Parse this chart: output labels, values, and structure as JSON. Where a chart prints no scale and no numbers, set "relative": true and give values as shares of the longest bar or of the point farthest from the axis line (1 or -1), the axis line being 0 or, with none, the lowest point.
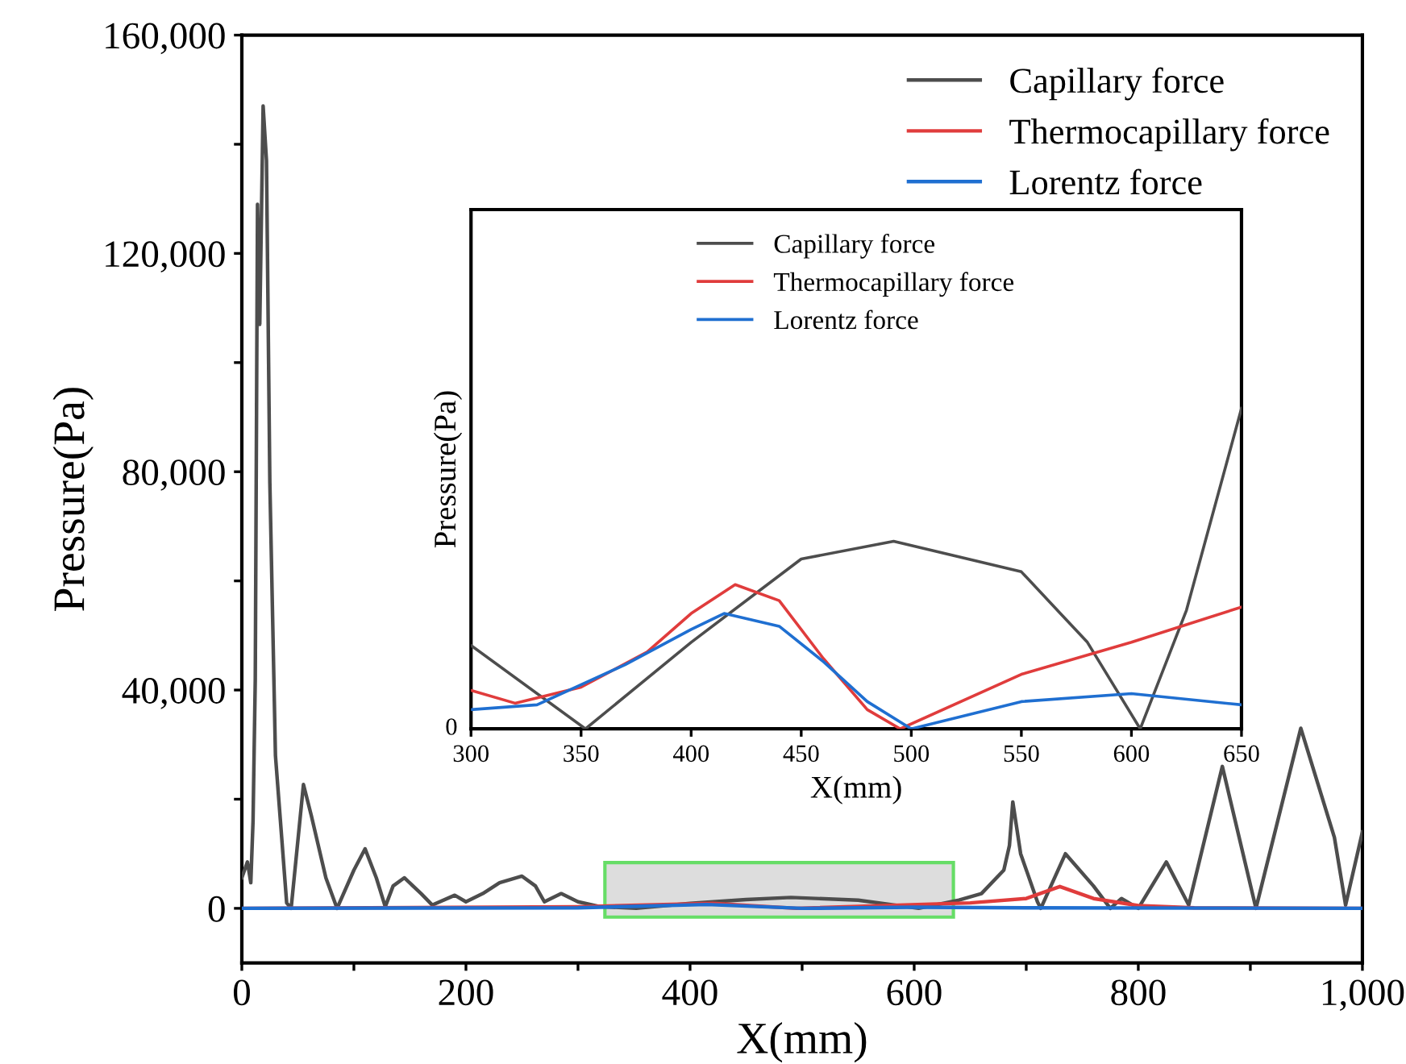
{
  "chart_data": [
    {
      "type": "line",
      "xlabel": "X(mm)",
      "ylabel": "Pressure(Pa)",
      "xlim": [
        0,
        1000
      ],
      "ylim": [
        -10000,
        160000
      ],
      "xticks": [
        0,
        {
          "value": 100,
          "label": null
        },
        200,
        {
          "value": 300,
          "label": null
        },
        400,
        {
          "value": 500,
          "label": null
        },
        600,
        {
          "value": 700,
          "label": null
        },
        800,
        {
          "value": 900,
          "label": null
        },
        {
          "value": 1000,
          "label": "1,000"
        }
      ],
      "yticks": [
        {
          "value": 0,
          "label": "0"
        },
        {
          "value": 20000,
          "label": null
        },
        {
          "value": 40000,
          "label": "40,000"
        },
        {
          "value": 60000,
          "label": null
        },
        {
          "value": 80000,
          "label": "80,000"
        },
        {
          "value": 100000,
          "label": null
        },
        {
          "value": 120000,
          "label": "120,000"
        },
        {
          "value": 140000,
          "label": null
        },
        {
          "value": 160000,
          "label": "160,000"
        }
      ],
      "grid": false,
      "legend": "top right",
      "bands": [
        {
          "axis": "x",
          "from": 324,
          "to": 635,
          "color": "#dddddd"
        }
      ],
      "series": [
        {
          "name": "Capillary force",
          "color": "#4d4d4d",
          "x": [
            0,
            5,
            8,
            10,
            12,
            14,
            16,
            19,
            22,
            25,
            30,
            40,
            44,
            55,
            62,
            75,
            85,
            100,
            110,
            120,
            128,
            135,
            145,
            160,
            170,
            190,
            200,
            215,
            230,
            250,
            262,
            270,
            285,
            300,
            320,
            352,
            400,
            450,
            490,
            550,
            604,
            640,
            660,
            680,
            685,
            688,
            695,
            710,
            713,
            735,
            760,
            775,
            785,
            800,
            825,
            845,
            875,
            905,
            945,
            975,
            985,
            1000
          ],
          "values": [
            5600,
            8500,
            4700,
            16000,
            42000,
            129000,
            107000,
            147000,
            137000,
            78000,
            28000,
            1000,
            0,
            22700,
            17000,
            5600,
            0,
            7000,
            10900,
            5600,
            300,
            4100,
            5600,
            2700,
            600,
            2400,
            1200,
            2700,
            4700,
            5900,
            4100,
            1200,
            2700,
            1200,
            300,
            0,
            900,
            1600,
            2000,
            1500,
            0,
            1500,
            2700,
            7000,
            11500,
            19500,
            10000,
            1200,
            0,
            10000,
            4100,
            0,
            1800,
            0,
            8500,
            600,
            26000,
            0,
            33000,
            13000,
            600,
            14000
          ]
        },
        {
          "name": "Thermocapillary force",
          "color": "#e03c3c",
          "x": [
            0,
            300,
            420,
            495,
            650,
            700,
            730,
            760,
            800,
            850,
            1000
          ],
          "values": [
            0,
            300,
            900,
            0,
            1000,
            1800,
            4000,
            1800,
            500,
            100,
            0
          ]
        },
        {
          "name": "Lorentz force",
          "color": "#1f6fd1",
          "x": [
            0,
            300,
            415,
            500,
            600,
            700,
            1000
          ],
          "values": [
            0,
            100,
            700,
            0,
            200,
            100,
            0
          ]
        }
      ]
    },
    {
      "type": "line",
      "relative": true,
      "xlabel": "X(mm)",
      "ylabel": "Pressure(Pa)",
      "xlim": [
        300,
        650
      ],
      "xticks": [
        300,
        350,
        400,
        450,
        500,
        550,
        600,
        650
      ],
      "annotations": [
        "0"
      ],
      "legend": "top",
      "grid": false,
      "series": [
        {
          "name": "Capillary force",
          "color": "#4d4d4d",
          "x": [
            300,
            352,
            400,
            450,
            492,
            550,
            580,
            604,
            625,
            650
          ],
          "values": [
            0.26,
            0,
            0.27,
            0.53,
            0.585,
            0.49,
            0.27,
            0,
            0.37,
            1.0
          ]
        },
        {
          "name": "Thermocapillary force",
          "color": "#e03c3c",
          "x": [
            300,
            320,
            350,
            380,
            400,
            420,
            440,
            460,
            480,
            495,
            550,
            600,
            650
          ],
          "values": [
            0.12,
            0.08,
            0.13,
            0.24,
            0.36,
            0.45,
            0.4,
            0.22,
            0.06,
            0,
            0.17,
            0.27,
            0.38
          ]
        },
        {
          "name": "Lorentz force",
          "color": "#1f6fd1",
          "x": [
            300,
            330,
            370,
            400,
            415,
            440,
            460,
            480,
            500,
            550,
            600,
            650
          ],
          "values": [
            0.06,
            0.075,
            0.2,
            0.31,
            0.36,
            0.32,
            0.21,
            0.085,
            0,
            0.085,
            0.11,
            0.075
          ]
        }
      ]
    }
  ]
}
